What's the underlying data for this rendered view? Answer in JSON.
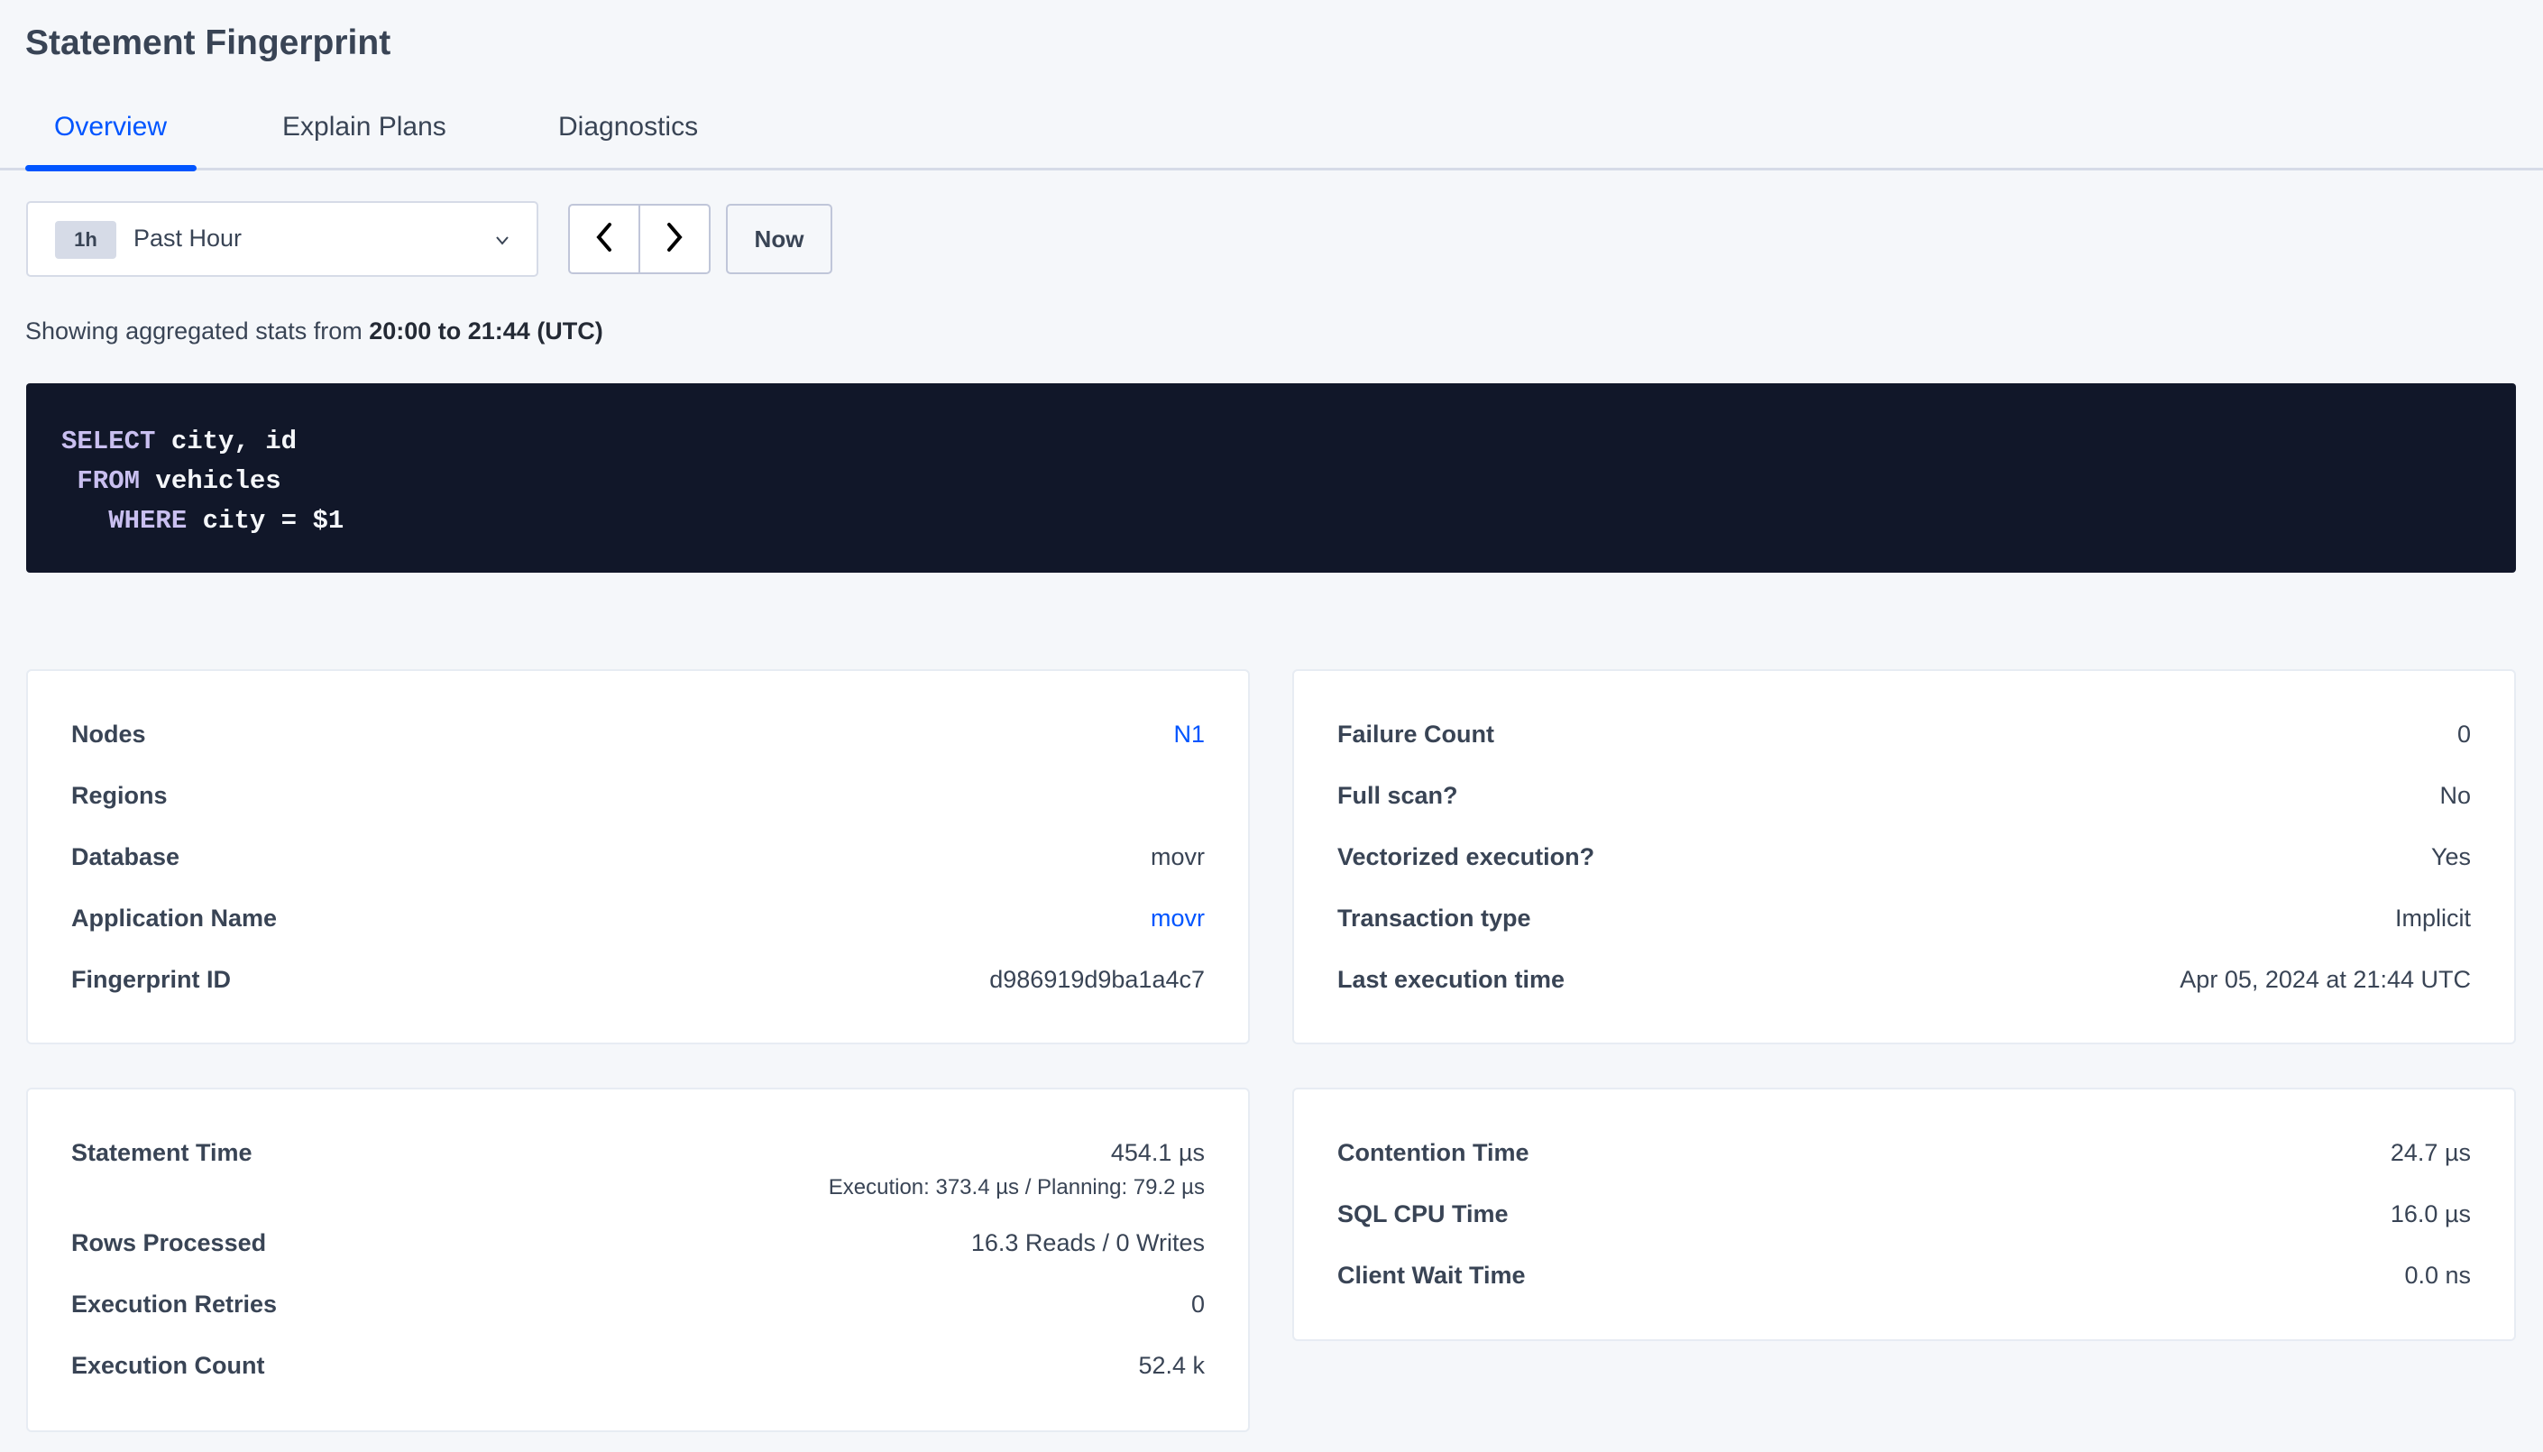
{
  "header": {
    "title": "Statement Fingerprint"
  },
  "tabs": [
    {
      "label": "Overview",
      "active": true
    },
    {
      "label": "Explain Plans"
    },
    {
      "label": "Diagnostics"
    }
  ],
  "time_range": {
    "badge": "1h",
    "label": "Past Hour",
    "prev_icon": "chevron-left",
    "next_icon": "chevron-right",
    "now_label": "Now"
  },
  "summary": {
    "prefix": "Showing aggregated stats from ",
    "range": "20:00 to 21:44 (UTC)"
  },
  "query": {
    "lines": [
      {
        "indent": "",
        "kw": "SELECT",
        "rest": " city, id"
      },
      {
        "indent": " ",
        "kw": "FROM",
        "rest": " vehicles"
      },
      {
        "indent": "   ",
        "kw": "WHERE",
        "rest": " city = $1"
      }
    ]
  },
  "cards": {
    "details": [
      {
        "label": "Nodes",
        "value": "N1",
        "link": true
      },
      {
        "label": "Regions",
        "value": ""
      },
      {
        "label": "Database",
        "value": "movr"
      },
      {
        "label": "Application Name",
        "value": "movr",
        "link": true
      },
      {
        "label": "Fingerprint ID",
        "value": "d986919d9ba1a4c7"
      }
    ],
    "execution": [
      {
        "label": "Failure Count",
        "value": "0"
      },
      {
        "label": "Full scan?",
        "value": "No"
      },
      {
        "label": "Vectorized execution?",
        "value": "Yes"
      },
      {
        "label": "Transaction type",
        "value": "Implicit"
      },
      {
        "label": "Last execution time",
        "value": "Apr 05, 2024 at 21:44 UTC"
      }
    ],
    "stats": [
      {
        "label": "Statement Time",
        "value": "454.1 µs",
        "sub": "Execution: 373.4 µs / Planning: 79.2 µs"
      },
      {
        "label": "Rows Processed",
        "value": "16.3 Reads / 0 Writes"
      },
      {
        "label": "Execution Retries",
        "value": "0"
      },
      {
        "label": "Execution Count",
        "value": "52.4 k"
      }
    ],
    "times": [
      {
        "label": "Contention Time",
        "value": "24.7 µs"
      },
      {
        "label": "SQL CPU Time",
        "value": "16.0 µs"
      },
      {
        "label": "Client Wait Time",
        "value": "0.0 ns"
      }
    ]
  },
  "colors": {
    "accent": "#0055ff",
    "code_bg": "#111729",
    "keyword": "#c9bff0",
    "page_bg": "#f5f7fa"
  }
}
